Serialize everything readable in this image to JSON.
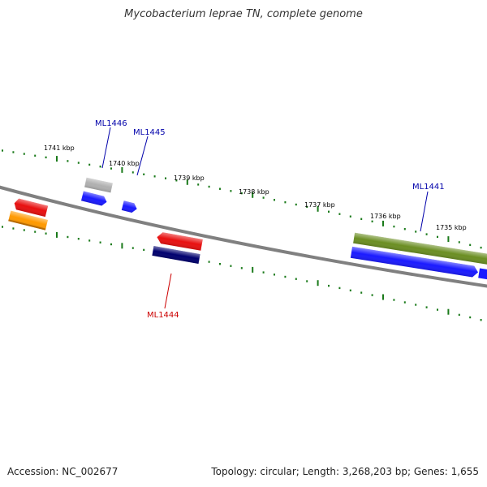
{
  "title": "Mycobacterium leprae TN, complete genome",
  "footer": {
    "accession": "Accession: NC_002677",
    "summary": "Topology: circular; Length: 3,268,203 bp; Genes: 1,655"
  },
  "colors": {
    "background": "#ffffff",
    "backbone": "#808080",
    "tick": "#1a7a1a",
    "label_blue": "#0000aa",
    "label_red": "#cc0000"
  },
  "scale_labels": [
    "1741 kbp",
    "1740 kbp",
    "1739 kbp",
    "1738 kbp",
    "1737 kbp",
    "1736 kbp",
    "1735 kbp"
  ],
  "gene_labels": [
    {
      "text": "ML1446",
      "color": "#0000aa"
    },
    {
      "text": "ML1445",
      "color": "#0000aa"
    },
    {
      "text": "ML1441",
      "color": "#0000aa"
    },
    {
      "text": "ML1444",
      "color": "#cc0000"
    }
  ],
  "features": [
    {
      "name": "red-gene-left",
      "color": "#e81010"
    },
    {
      "name": "orange-gene-left",
      "color": "#ff9900"
    },
    {
      "name": "gray-gene",
      "color": "#b0b0b0"
    },
    {
      "name": "blue-gene-1446",
      "color": "#1a1aff"
    },
    {
      "name": "blue-gene-1445",
      "color": "#1a1aff"
    },
    {
      "name": "red-gene-1444",
      "color": "#e81010"
    },
    {
      "name": "navy-gene",
      "color": "#00006e"
    },
    {
      "name": "olive-gene-1441",
      "color": "#6b8e23"
    },
    {
      "name": "blue-gene-long",
      "color": "#1a1aff"
    },
    {
      "name": "blue-gene-edge",
      "color": "#1a1aff"
    }
  ]
}
